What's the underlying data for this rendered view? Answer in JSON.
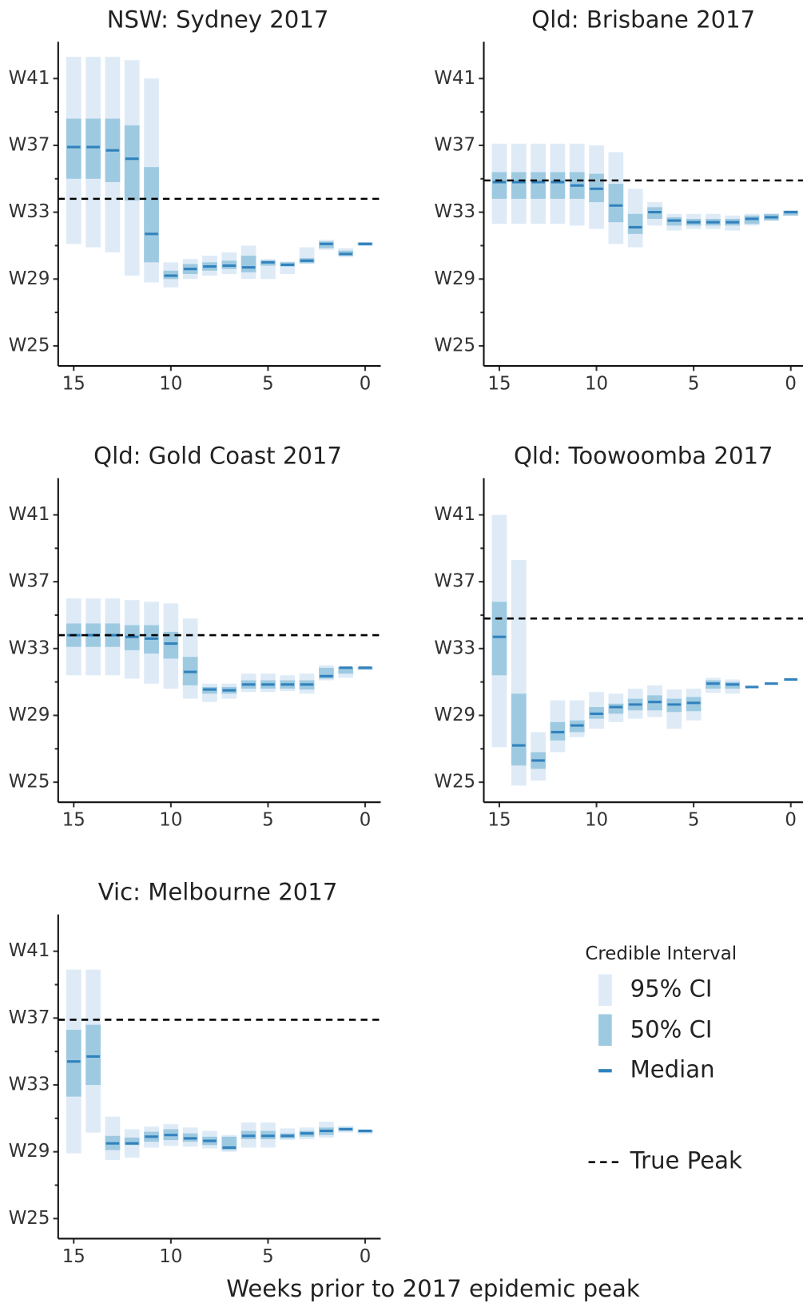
{
  "chart_data": [
    {
      "type": "interval",
      "title": "NSW: Sydney 2017",
      "x": [
        15,
        14,
        13,
        12,
        11,
        10,
        9,
        8,
        7,
        6,
        5,
        4,
        3,
        2,
        1,
        0
      ],
      "ci95_low": [
        31.1,
        30.9,
        30.6,
        29.2,
        28.8,
        28.5,
        29.0,
        29.2,
        29.3,
        29.0,
        29.0,
        29.3,
        29.9,
        30.75,
        30.3,
        31.0
      ],
      "ci95_high": [
        42.3,
        42.3,
        42.3,
        42.1,
        41.0,
        30.0,
        30.2,
        30.4,
        30.6,
        31.0,
        30.2,
        30.05,
        30.9,
        31.35,
        30.85,
        31.2
      ],
      "ci50_low": [
        35.0,
        35.0,
        34.8,
        33.7,
        30.0,
        29.0,
        29.3,
        29.5,
        29.6,
        29.4,
        29.8,
        29.75,
        29.95,
        30.85,
        30.4,
        31.0
      ],
      "ci50_high": [
        38.6,
        38.6,
        38.6,
        38.2,
        35.7,
        29.5,
        29.9,
        30.0,
        30.1,
        30.4,
        30.1,
        30.0,
        30.25,
        31.25,
        30.7,
        31.2
      ],
      "median": [
        36.9,
        36.9,
        36.7,
        36.2,
        31.7,
        29.2,
        29.6,
        29.75,
        29.8,
        29.7,
        30.0,
        29.85,
        30.1,
        31.1,
        30.5,
        31.1
      ],
      "true_peak": 33.8,
      "xlim": [
        15.8,
        -0.8
      ],
      "xticks": [
        15,
        10,
        5,
        0
      ],
      "ylim": [
        23.8,
        43.2
      ],
      "yticks": [
        {
          "value": 25,
          "label": "W25"
        },
        {
          "value": 29,
          "label": "W29"
        },
        {
          "value": 33,
          "label": "W33"
        },
        {
          "value": 37,
          "label": "W37"
        },
        {
          "value": 41,
          "label": "W41"
        }
      ],
      "yticks_minor": [
        27,
        31,
        35,
        39
      ]
    },
    {
      "type": "interval",
      "title": "Qld: Brisbane 2017",
      "x": [
        15,
        14,
        13,
        12,
        11,
        10,
        9,
        8,
        7,
        6,
        5,
        4,
        3,
        2,
        1,
        0
      ],
      "ci95_low": [
        32.3,
        32.3,
        32.3,
        32.3,
        32.2,
        32.0,
        31.1,
        30.9,
        32.2,
        31.9,
        32.0,
        32.0,
        31.9,
        32.2,
        32.5,
        32.8
      ],
      "ci95_high": [
        37.1,
        37.1,
        37.1,
        37.1,
        37.1,
        37.0,
        36.6,
        34.4,
        33.6,
        32.9,
        32.9,
        32.9,
        32.8,
        32.9,
        32.9,
        33.1
      ],
      "ci50_low": [
        33.8,
        33.8,
        33.8,
        33.8,
        33.8,
        33.6,
        32.4,
        31.7,
        32.6,
        32.2,
        32.2,
        32.2,
        32.2,
        32.3,
        32.5,
        32.8
      ],
      "ci50_high": [
        35.4,
        35.4,
        35.4,
        35.4,
        35.4,
        35.3,
        34.7,
        32.9,
        33.3,
        32.7,
        32.6,
        32.6,
        32.6,
        32.8,
        32.9,
        33.1
      ],
      "median": [
        34.8,
        34.8,
        34.8,
        34.8,
        34.6,
        34.4,
        33.4,
        32.1,
        33.0,
        32.5,
        32.4,
        32.4,
        32.4,
        32.6,
        32.7,
        33.0
      ],
      "true_peak": 34.9,
      "xlim": [
        15.8,
        -0.8
      ],
      "xticks": [
        15,
        10,
        5,
        0
      ],
      "ylim": [
        23.8,
        43.2
      ],
      "yticks": [
        {
          "value": 25,
          "label": "W25"
        },
        {
          "value": 29,
          "label": "W29"
        },
        {
          "value": 33,
          "label": "W33"
        },
        {
          "value": 37,
          "label": "W37"
        },
        {
          "value": 41,
          "label": "W41"
        }
      ],
      "yticks_minor": [
        27,
        31,
        35,
        39
      ]
    },
    {
      "type": "interval",
      "title": "Qld: Gold Coast 2017",
      "x": [
        15,
        14,
        13,
        12,
        11,
        10,
        9,
        8,
        7,
        6,
        5,
        4,
        3,
        2,
        1,
        0
      ],
      "ci95_low": [
        31.4,
        31.4,
        31.4,
        31.2,
        30.9,
        30.6,
        30.0,
        29.8,
        30.0,
        30.4,
        30.4,
        30.45,
        30.3,
        31.1,
        31.25,
        31.7
      ],
      "ci95_high": [
        36.0,
        36.0,
        36.0,
        35.9,
        35.8,
        35.7,
        34.8,
        30.9,
        30.9,
        31.5,
        31.5,
        31.4,
        31.5,
        32.0,
        31.9,
        31.95
      ],
      "ci50_low": [
        33.1,
        33.1,
        33.1,
        32.9,
        32.7,
        32.4,
        30.8,
        30.3,
        30.3,
        30.6,
        30.6,
        30.6,
        30.55,
        31.2,
        31.5,
        31.75
      ],
      "ci50_high": [
        34.5,
        34.5,
        34.5,
        34.4,
        34.4,
        34.0,
        32.5,
        30.7,
        30.7,
        31.1,
        31.1,
        31.1,
        31.1,
        31.85,
        31.9,
        31.9
      ],
      "median": [
        33.8,
        33.8,
        33.8,
        33.7,
        33.6,
        33.3,
        31.6,
        30.55,
        30.5,
        30.85,
        30.85,
        30.85,
        30.85,
        31.35,
        31.85,
        31.85
      ],
      "true_peak": 33.8,
      "xlim": [
        15.8,
        -0.8
      ],
      "xticks": [
        15,
        10,
        5,
        0
      ],
      "ylim": [
        23.8,
        43.2
      ],
      "yticks": [
        {
          "value": 25,
          "label": "W25"
        },
        {
          "value": 29,
          "label": "W29"
        },
        {
          "value": 33,
          "label": "W33"
        },
        {
          "value": 37,
          "label": "W37"
        },
        {
          "value": 41,
          "label": "W41"
        }
      ],
      "yticks_minor": [
        27,
        31,
        35,
        39
      ]
    },
    {
      "type": "interval",
      "title": "Qld: Toowoomba 2017",
      "x": [
        15,
        14,
        13,
        12,
        11,
        10,
        9,
        8,
        7,
        6,
        5,
        4,
        3,
        2,
        1,
        0
      ],
      "ci95_low": [
        27.1,
        24.8,
        25.1,
        26.8,
        27.7,
        28.2,
        28.6,
        28.8,
        28.9,
        28.2,
        28.7,
        30.35,
        30.3,
        30.7,
        30.9,
        31.15
      ],
      "ci95_high": [
        41.0,
        38.3,
        28.0,
        29.9,
        29.9,
        30.4,
        30.3,
        30.6,
        30.8,
        30.55,
        30.6,
        31.25,
        31.15,
        30.7,
        30.9,
        31.15
      ],
      "ci50_low": [
        31.4,
        26.0,
        25.8,
        27.5,
        28.0,
        28.8,
        29.1,
        29.3,
        29.3,
        29.2,
        29.25,
        30.6,
        30.6,
        30.7,
        30.9,
        31.15
      ],
      "ci50_high": [
        35.8,
        30.3,
        26.8,
        28.6,
        28.7,
        29.5,
        29.7,
        30.0,
        30.2,
        30.0,
        30.1,
        31.1,
        31.0,
        30.7,
        30.9,
        31.15
      ],
      "median": [
        33.7,
        27.2,
        26.3,
        28.0,
        28.4,
        29.1,
        29.5,
        29.65,
        29.8,
        29.65,
        29.75,
        30.9,
        30.85,
        30.7,
        30.9,
        31.15
      ],
      "true_peak": 34.8,
      "xlim": [
        15.8,
        -0.8
      ],
      "xticks": [
        15,
        10,
        5,
        0
      ],
      "ylim": [
        23.8,
        43.2
      ],
      "yticks": [
        {
          "value": 25,
          "label": "W25"
        },
        {
          "value": 29,
          "label": "W29"
        },
        {
          "value": 33,
          "label": "W33"
        },
        {
          "value": 37,
          "label": "W37"
        },
        {
          "value": 41,
          "label": "W41"
        }
      ],
      "yticks_minor": [
        27,
        31,
        35,
        39
      ]
    },
    {
      "type": "interval",
      "title": "Vic: Melbourne 2017",
      "x": [
        15,
        14,
        13,
        12,
        11,
        10,
        9,
        8,
        7,
        6,
        5,
        4,
        3,
        2,
        1,
        0
      ],
      "ci95_low": [
        28.9,
        30.15,
        28.5,
        28.65,
        29.25,
        29.35,
        29.3,
        29.2,
        29.0,
        29.25,
        29.25,
        29.7,
        29.75,
        29.85,
        30.15,
        30.05
      ],
      "ci95_high": [
        39.9,
        39.9,
        31.1,
        30.35,
        30.5,
        30.65,
        30.45,
        30.25,
        30.0,
        30.75,
        30.75,
        30.4,
        30.45,
        30.8,
        30.55,
        30.35
      ],
      "ci50_low": [
        32.3,
        33.0,
        29.1,
        29.4,
        29.6,
        29.7,
        29.6,
        29.4,
        29.1,
        29.75,
        29.75,
        29.8,
        29.9,
        30.0,
        30.25,
        30.15
      ],
      "ci50_high": [
        36.3,
        36.6,
        29.95,
        29.85,
        30.2,
        30.35,
        30.1,
        29.9,
        29.9,
        30.25,
        30.25,
        30.1,
        30.25,
        30.45,
        30.45,
        30.3
      ],
      "median": [
        34.4,
        34.7,
        29.5,
        29.5,
        29.9,
        30.0,
        29.8,
        29.65,
        29.25,
        29.95,
        29.95,
        29.95,
        30.1,
        30.25,
        30.35,
        30.25
      ],
      "true_peak": 36.9,
      "xlim": [
        15.8,
        -0.8
      ],
      "xticks": [
        15,
        10,
        5,
        0
      ],
      "ylim": [
        23.8,
        43.2
      ],
      "yticks": [
        {
          "value": 25,
          "label": "W25"
        },
        {
          "value": 29,
          "label": "W29"
        },
        {
          "value": 33,
          "label": "W33"
        },
        {
          "value": 37,
          "label": "W37"
        },
        {
          "value": 41,
          "label": "W41"
        }
      ],
      "yticks_minor": [
        27,
        31,
        35,
        39
      ]
    }
  ],
  "xlabel": "Weeks prior to 2017 epidemic peak",
  "legend": {
    "title": "Credible Interval",
    "entries": [
      "95% CI",
      "50% CI",
      "Median"
    ],
    "true_peak_label": "True Peak"
  },
  "colors": {
    "ci95": "#deebf7",
    "ci50": "#9ecae1",
    "median": "#3182bd",
    "true_peak": "#000000"
  }
}
